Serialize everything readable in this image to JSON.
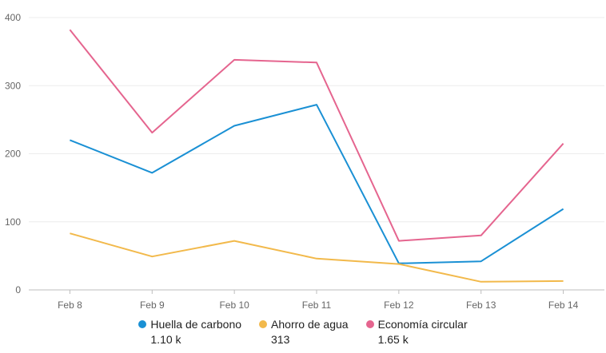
{
  "chart_data": {
    "type": "line",
    "categories": [
      "Feb 8",
      "Feb 9",
      "Feb 10",
      "Feb 11",
      "Feb 12",
      "Feb 13",
      "Feb 14"
    ],
    "ylim": [
      0,
      400
    ],
    "yticks": [
      0,
      100,
      200,
      300,
      400
    ],
    "grid": true,
    "legend": "bottom-center",
    "series": [
      {
        "name": "Huella de carbono",
        "color": "#1a90d4",
        "total": "1.10 k",
        "values": [
          220,
          172,
          241,
          272,
          39,
          42,
          119
        ]
      },
      {
        "name": "Ahorro de agua",
        "color": "#f2b94b",
        "total": "313",
        "values": [
          83,
          49,
          72,
          46,
          38,
          12,
          13
        ]
      },
      {
        "name": "Economía circular",
        "color": "#e5658f",
        "total": "1.65 k",
        "values": [
          382,
          231,
          338,
          334,
          72,
          80,
          215
        ]
      }
    ]
  }
}
